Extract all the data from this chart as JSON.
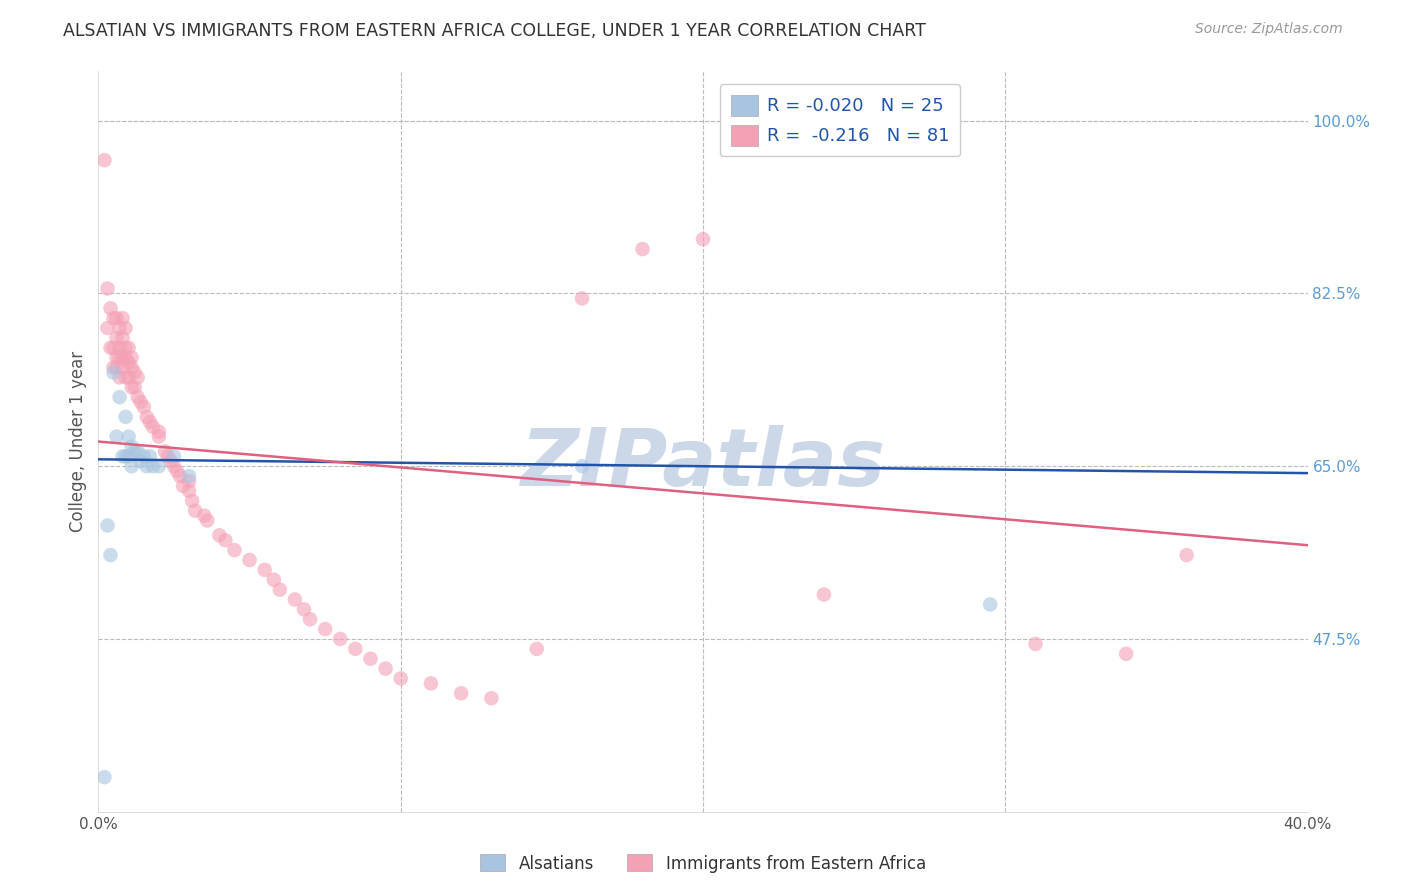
{
  "title": "ALSATIAN VS IMMIGRANTS FROM EASTERN AFRICA COLLEGE, UNDER 1 YEAR CORRELATION CHART",
  "source": "Source: ZipAtlas.com",
  "ylabel": "College, Under 1 year",
  "xlim": [
    0.0,
    0.4
  ],
  "ylim": [
    0.3,
    1.05
  ],
  "x_ticks": [
    0.0,
    0.1,
    0.2,
    0.3,
    0.4
  ],
  "x_tick_labels": [
    "0.0%",
    "",
    "",
    "",
    "40.0%"
  ],
  "y_ticks": [
    0.475,
    0.65,
    0.825,
    1.0
  ],
  "y_tick_labels": [
    "47.5%",
    "65.0%",
    "82.5%",
    "100.0%"
  ],
  "legend_label_blue": "R = -0.020   N = 25",
  "legend_label_pink": "R =  -0.216   N = 81",
  "alsatian_color": "#a8c4e0",
  "immigrant_color": "#f4a0b5",
  "alsatian_line_color": "#2255aa",
  "immigrant_line_color": "#e06080",
  "watermark": "ZIPatlas",
  "watermark_color": "#ccd8e8",
  "background_color": "#ffffff",
  "grid_color": "#bbbbbb",
  "alsatian_x": [
    0.002,
    0.005,
    0.006,
    0.007,
    0.008,
    0.009,
    0.009,
    0.01,
    0.01,
    0.011,
    0.011,
    0.012,
    0.013,
    0.014,
    0.015,
    0.016,
    0.017,
    0.018,
    0.02,
    0.025,
    0.03,
    0.16,
    0.295,
    0.004,
    0.003
  ],
  "alsatian_y": [
    0.335,
    0.745,
    0.68,
    0.72,
    0.66,
    0.66,
    0.7,
    0.66,
    0.68,
    0.65,
    0.67,
    0.665,
    0.665,
    0.655,
    0.66,
    0.65,
    0.66,
    0.65,
    0.65,
    0.66,
    0.64,
    0.65,
    0.51,
    0.56,
    0.59
  ],
  "immigrant_x": [
    0.002,
    0.003,
    0.003,
    0.004,
    0.004,
    0.005,
    0.005,
    0.005,
    0.006,
    0.006,
    0.006,
    0.006,
    0.007,
    0.007,
    0.007,
    0.007,
    0.008,
    0.008,
    0.008,
    0.008,
    0.009,
    0.009,
    0.009,
    0.009,
    0.01,
    0.01,
    0.01,
    0.011,
    0.011,
    0.011,
    0.012,
    0.012,
    0.013,
    0.013,
    0.014,
    0.015,
    0.016,
    0.017,
    0.018,
    0.02,
    0.02,
    0.022,
    0.023,
    0.024,
    0.025,
    0.026,
    0.027,
    0.028,
    0.03,
    0.03,
    0.031,
    0.032,
    0.035,
    0.036,
    0.04,
    0.042,
    0.045,
    0.05,
    0.055,
    0.058,
    0.06,
    0.065,
    0.068,
    0.07,
    0.075,
    0.08,
    0.085,
    0.09,
    0.095,
    0.1,
    0.11,
    0.12,
    0.13,
    0.145,
    0.16,
    0.18,
    0.2,
    0.24,
    0.31,
    0.34,
    0.36
  ],
  "immigrant_y": [
    0.96,
    0.79,
    0.83,
    0.77,
    0.81,
    0.75,
    0.77,
    0.8,
    0.75,
    0.76,
    0.78,
    0.8,
    0.74,
    0.76,
    0.77,
    0.79,
    0.75,
    0.76,
    0.78,
    0.8,
    0.74,
    0.76,
    0.77,
    0.79,
    0.74,
    0.755,
    0.77,
    0.73,
    0.75,
    0.76,
    0.73,
    0.745,
    0.72,
    0.74,
    0.715,
    0.71,
    0.7,
    0.695,
    0.69,
    0.68,
    0.685,
    0.665,
    0.66,
    0.655,
    0.65,
    0.645,
    0.64,
    0.63,
    0.625,
    0.635,
    0.615,
    0.605,
    0.6,
    0.595,
    0.58,
    0.575,
    0.565,
    0.555,
    0.545,
    0.535,
    0.525,
    0.515,
    0.505,
    0.495,
    0.485,
    0.475,
    0.465,
    0.455,
    0.445,
    0.435,
    0.43,
    0.42,
    0.415,
    0.465,
    0.82,
    0.87,
    0.88,
    0.52,
    0.47,
    0.46,
    0.56
  ],
  "dot_size": 110,
  "dot_alpha": 0.6
}
